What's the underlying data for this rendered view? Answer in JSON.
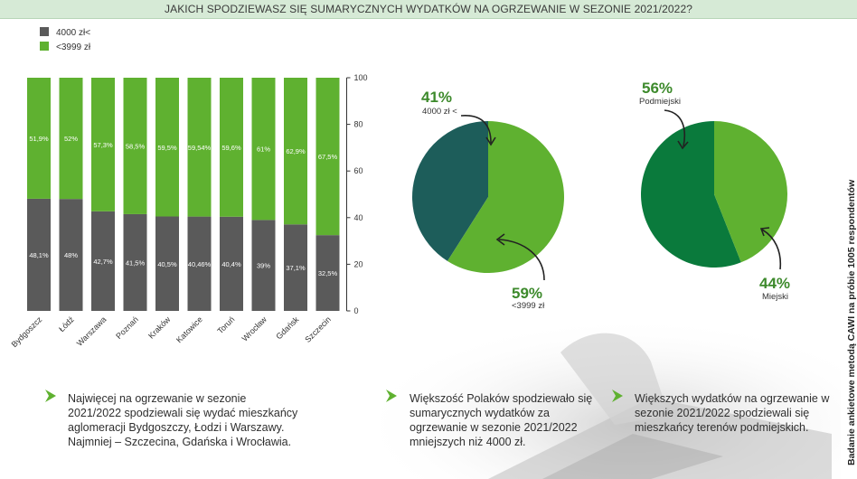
{
  "header": {
    "title": "JAKICH SPODZIEWASZ SIĘ SUMARYCZNYCH WYDATKÓW NA OGRZEWANIE W SEZONIE 2021/2022?"
  },
  "legend": [
    {
      "label": "4000 zł<",
      "color": "#5a5a5a"
    },
    {
      "label": "<3999 zł",
      "color": "#5fb130"
    }
  ],
  "chart_data": [
    {
      "type": "bar",
      "stacked": true,
      "categories": [
        "Bydgoszcz",
        "Łódź",
        "Warszawa",
        "Poznań",
        "Kraków",
        "Katowice",
        "Toruń",
        "Wrocław",
        "Gdańsk",
        "Szczecin"
      ],
      "series": [
        {
          "name": "4000 zł<",
          "color": "#5a5a5a",
          "values": [
            48.1,
            48,
            42.7,
            41.5,
            40.5,
            40.46,
            40.4,
            39,
            37.1,
            32.5
          ],
          "labels": [
            "48,1%",
            "48%",
            "42,7%",
            "41,5%",
            "40,5%",
            "40,46%",
            "40,4%",
            "39%",
            "37,1%",
            "32,5%"
          ]
        },
        {
          "name": "<3999 zł",
          "color": "#5fb130",
          "values": [
            51.9,
            52,
            57.3,
            58.5,
            59.5,
            59.54,
            59.6,
            61,
            62.9,
            67.5
          ],
          "labels": [
            "51,9%",
            "52%",
            "57,3%",
            "58,5%",
            "59,5%",
            "59,54%",
            "59,6%",
            "61%",
            "62,9%",
            "67,5%"
          ]
        }
      ],
      "ylim": [
        0,
        100
      ],
      "yticks": [
        "0",
        "20",
        "40",
        "60",
        "80",
        "100"
      ],
      "grid": false,
      "legend_position": "top-left"
    },
    {
      "type": "pie",
      "slices": [
        {
          "pct_label": "41%",
          "label": "4000 zł <",
          "value": 41,
          "color": "#1d5d5a"
        },
        {
          "pct_label": "59%",
          "label": "<3999 zł",
          "value": 59,
          "color": "#5fb130"
        }
      ]
    },
    {
      "type": "pie",
      "slices": [
        {
          "pct_label": "56%",
          "label": "Podmiejski",
          "value": 56,
          "color": "#0a7a3c"
        },
        {
          "pct_label": "44%",
          "label": "Miejski",
          "value": 44,
          "color": "#5fb130"
        }
      ]
    }
  ],
  "notes": [
    "Najwięcej na ogrzewanie w sezonie 2021/2022 spodziewali się wydać mieszkańcy aglomeracji Bydgoszczy, Łodzi i Warszawy. Najmniej – Szczecina, Gdańska i Wrocławia.",
    "Większość Polaków spodziewało się sumarycznych wydatków za ogrzewanie w sezonie 2021/2022 mniejszych niż 4000 zł.",
    "Większych wydatków na ogrzewanie w sezonie 2021/2022 spodziewali się mieszkańcy terenów podmiejskich."
  ],
  "side_note": "Badanie ankietowe metodą CAWI na próbie 1005 respondentów",
  "colors": {
    "accent": "#5fb130",
    "dark": "#5a5a5a",
    "header_bg": "#d6ead6"
  }
}
